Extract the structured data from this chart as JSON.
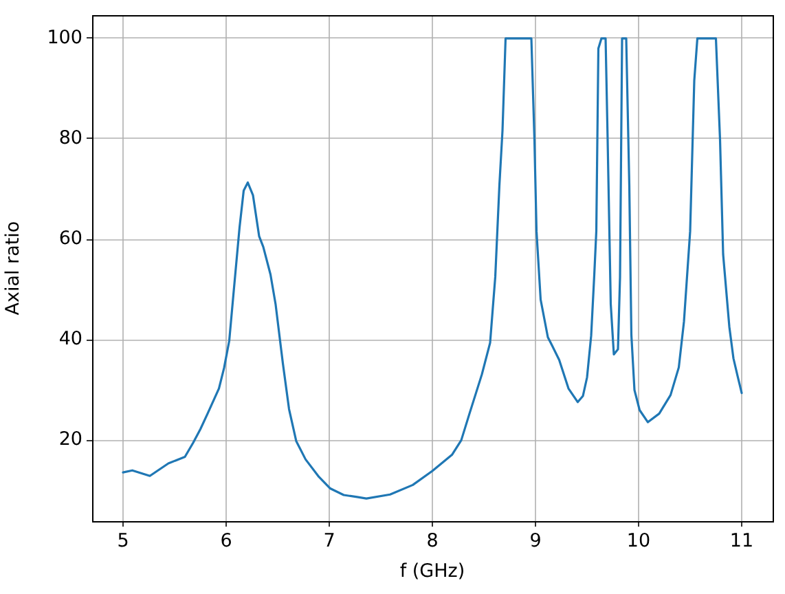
{
  "chart_data": {
    "type": "line",
    "xlabel": "f (GHz)",
    "ylabel": "Axial ratio",
    "x": [
      5.0,
      5.09,
      5.26,
      5.44,
      5.6,
      5.68,
      5.75,
      5.82,
      5.93,
      5.98,
      6.03,
      6.07,
      6.13,
      6.17,
      6.21,
      6.26,
      6.32,
      6.36,
      6.43,
      6.48,
      6.55,
      6.61,
      6.68,
      6.77,
      6.9,
      7.01,
      7.14,
      7.27,
      7.36,
      7.59,
      7.81,
      8.0,
      8.19,
      8.28,
      8.36,
      8.48,
      8.56,
      8.59,
      8.61,
      8.65,
      8.68,
      8.71,
      8.96,
      8.99,
      9.01,
      9.05,
      9.12,
      9.16,
      9.23,
      9.32,
      9.41,
      9.46,
      9.5,
      9.54,
      9.57,
      9.59,
      9.61,
      9.64,
      9.68,
      9.7,
      9.73,
      9.76,
      9.8,
      9.82,
      9.84,
      9.88,
      9.91,
      9.93,
      9.96,
      10.01,
      10.09,
      10.2,
      10.31,
      10.39,
      10.44,
      10.5,
      10.54,
      10.57,
      10.75,
      10.79,
      10.82,
      10.88,
      10.92,
      10.96,
      11.0
    ],
    "series": [
      {
        "color": "#1f77b4",
        "values": [
          13.6,
          14.0,
          12.9,
          15.4,
          16.7,
          19.5,
          22.2,
          25.3,
          30.3,
          34.4,
          39.8,
          48.9,
          62.4,
          69.7,
          71.3,
          68.8,
          60.6,
          58.5,
          53,
          47,
          35.3,
          26.2,
          19.8,
          16.2,
          12.7,
          10.4,
          9.1,
          8.7,
          8.4,
          9.2,
          11.1,
          13.9,
          17.1,
          20.0,
          25.3,
          33.1,
          39.4,
          47.3,
          52.5,
          70.7,
          81.6,
          100,
          100,
          79.8,
          61.6,
          48,
          40.5,
          38.9,
          36,
          30.3,
          27.6,
          28.8,
          32.5,
          40.8,
          52.8,
          61.6,
          98,
          100,
          100,
          79.8,
          47.1,
          37.1,
          38.1,
          52.5,
          100,
          100,
          70.7,
          41,
          30,
          26,
          23.6,
          25.3,
          29,
          34.5,
          43.6,
          61.6,
          91.6,
          100,
          100,
          79.8,
          57,
          42.6,
          36.3,
          32.8,
          29.4
        ]
      }
    ],
    "xlim": [
      4.7,
      11.3
    ],
    "ylim": [
      3.9,
      104.6
    ],
    "xticks": [
      5,
      6,
      7,
      8,
      9,
      10,
      11
    ],
    "yticks": [
      20,
      40,
      60,
      80,
      100
    ],
    "grid": true,
    "legend": false
  }
}
